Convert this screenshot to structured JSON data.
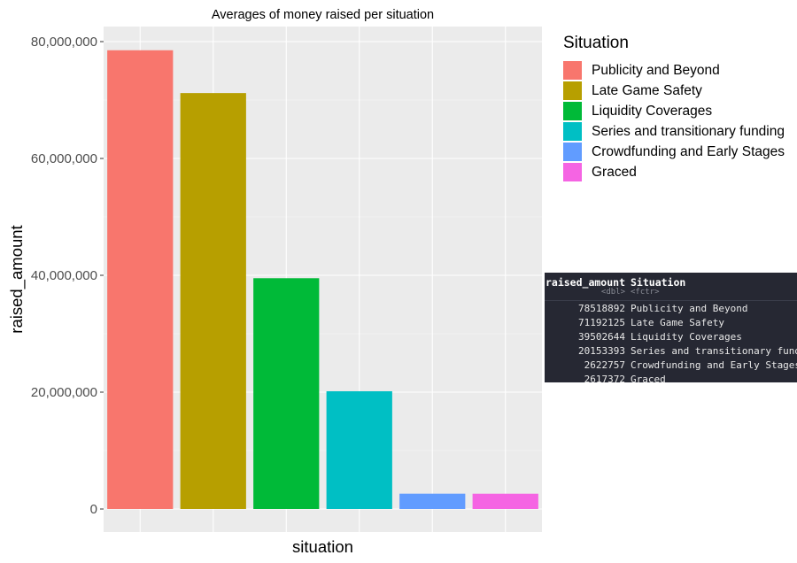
{
  "colors": {
    "panel": "#EBEBEB",
    "grid_major": "#FFFFFF",
    "grid_minor": "#F5F5F5",
    "axis_text": "#4D4D4D",
    "table_bg": "#262833"
  },
  "chart_data": {
    "type": "bar",
    "title": "Averages of money raised per situation",
    "xlabel": "situation",
    "ylabel": "raised_amount",
    "ylim": [
      0,
      80000000
    ],
    "yticks": [
      "0",
      "20,000,000",
      "40,000,000",
      "60,000,000",
      "80,000,000"
    ],
    "ytick_values": [
      0,
      20000000,
      40000000,
      60000000,
      80000000
    ],
    "grid": true,
    "legend_placement": "right",
    "legend_title": "Situation",
    "categories": [
      "Publicity and Beyond",
      "Late Game Safety",
      "Liquidity Coverages",
      "Series and transitionary funding",
      "Crowdfunding and Early Stages",
      "Graced"
    ],
    "values": [
      78518892,
      71192125,
      39502644,
      20153393,
      2622757,
      2617372
    ],
    "colors": [
      "#F8766D",
      "#B79F00",
      "#00BA38",
      "#00BFC4",
      "#619CFF",
      "#F564E3"
    ]
  },
  "data_table": {
    "columns": [
      {
        "name": "raised_amount",
        "type": "<dbl>"
      },
      {
        "name": "Situation",
        "type": "<fctr>"
      }
    ],
    "rows": [
      [
        "78518892",
        "Publicity and Beyond"
      ],
      [
        "71192125",
        "Late Game Safety"
      ],
      [
        "39502644",
        "Liquidity Coverages"
      ],
      [
        "20153393",
        "Series and transitionary funding"
      ],
      [
        "2622757",
        "Crowdfunding and Early Stages"
      ],
      [
        "2617372",
        "Graced"
      ]
    ]
  }
}
